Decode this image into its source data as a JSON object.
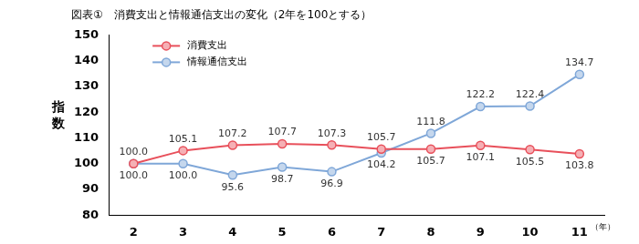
{
  "chart_data": {
    "type": "line",
    "title": "図表①　消費支出と情報通信支出の変化（2年を100とする）",
    "ylabel": "指数",
    "xlabel": "（年）",
    "categories": [
      "2",
      "3",
      "4",
      "5",
      "6",
      "7",
      "8",
      "9",
      "10",
      "11"
    ],
    "series": [
      {
        "name": "消費支出",
        "color": "#e8505b",
        "marker": "circle",
        "values": [
          100.0,
          105.1,
          107.2,
          107.7,
          107.3,
          105.7,
          105.7,
          107.1,
          105.5,
          103.8
        ],
        "value_labels": [
          "100.0",
          "105.1",
          "107.2",
          "107.7",
          "107.3",
          "105.7",
          "105.7",
          "107.1",
          "105.5",
          "103.8"
        ]
      },
      {
        "name": "情報通信支出",
        "color": "#7fa7d8",
        "marker": "circle",
        "values": [
          100.0,
          100.0,
          95.6,
          98.7,
          96.9,
          104.2,
          111.8,
          122.2,
          122.4,
          134.7
        ],
        "value_labels": [
          "100.0",
          "100.0",
          "95.6",
          "98.7",
          "96.9",
          "104.2",
          "111.8",
          "122.2",
          "122.4",
          "134.7"
        ]
      }
    ],
    "ylim": [
      80,
      150
    ],
    "yticks": [
      80,
      90,
      100,
      110,
      120,
      130,
      140,
      150
    ],
    "grid": false,
    "legend": "upper left",
    "data_labels": true
  }
}
